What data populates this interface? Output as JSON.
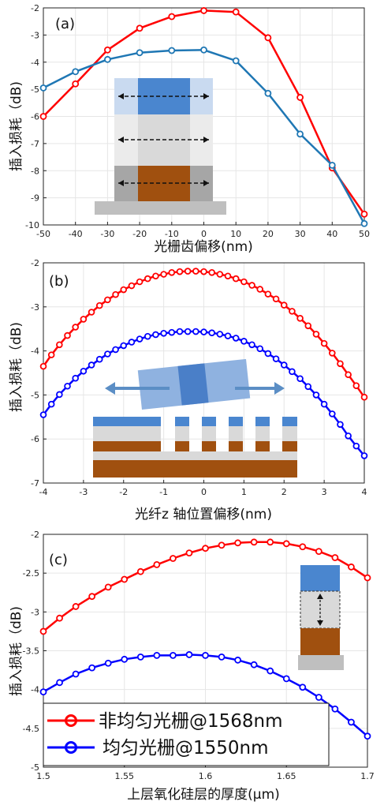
{
  "colors": {
    "red": "#ff0000",
    "blue": "#0070c0",
    "lightblue": "#5b9bd5",
    "paleblue": "#bdd7ee",
    "brown": "#a0500f",
    "gray": "#bfbfbf",
    "lightgray": "#d9d9d9",
    "darkgray": "#a6a6a6",
    "arrowblue": "#5b8ec5"
  },
  "legend": {
    "entries": [
      "非均匀光栅@1568nm",
      "均匀光栅@1550nm"
    ],
    "colors": [
      "#ff0000",
      "#0000ff"
    ]
  },
  "chart_data": [
    {
      "type": "line",
      "panel_label": "(a)",
      "xlabel": "光栅齿偏移(nm)",
      "ylabel": "插入损耗（dB)",
      "xlim": [
        -50,
        50
      ],
      "ylim": [
        -10,
        -2
      ],
      "xticks": [
        -50,
        -40,
        -30,
        -20,
        -10,
        0,
        10,
        20,
        30,
        40,
        50
      ],
      "yticks": [
        -10,
        -9,
        -8,
        -7,
        -6,
        -5,
        -4,
        -3,
        -2
      ],
      "xticklabels": [
        "-50",
        "-40",
        "-30",
        "-20",
        "-10",
        "0",
        "10",
        "20",
        "30",
        "40",
        "50"
      ],
      "yticklabels": [
        "-10",
        "-9",
        "-8",
        "-7",
        "-6",
        "-5",
        "-4",
        "-3",
        "-2"
      ],
      "grid": true,
      "series": [
        {
          "color": "#ff0000",
          "x": [
            -50,
            -40,
            -30,
            -20,
            -10,
            0,
            10,
            20,
            30,
            40,
            50
          ],
          "values": [
            -6.0,
            -4.8,
            -3.55,
            -2.75,
            -2.32,
            -2.1,
            -2.15,
            -3.1,
            -5.3,
            -7.9,
            -9.6
          ]
        },
        {
          "color": "#1f77b4",
          "x": [
            -50,
            -40,
            -30,
            -20,
            -10,
            0,
            10,
            20,
            30,
            40,
            50
          ],
          "values": [
            -4.95,
            -4.35,
            -3.9,
            -3.65,
            -3.57,
            -3.55,
            -3.95,
            -5.15,
            -6.65,
            -7.8,
            -9.95
          ]
        }
      ]
    },
    {
      "type": "line",
      "panel_label": "(b)",
      "xlabel": "光纤z 轴位置偏移(nm)",
      "ylabel": "插入损耗（dB)",
      "xlim": [
        -4,
        4
      ],
      "ylim": [
        -7,
        -2
      ],
      "xticks": [
        -4,
        -3,
        -2,
        -1,
        0,
        1,
        2,
        3,
        4
      ],
      "yticks": [
        -7,
        -6,
        -5,
        -4,
        -3,
        -2
      ],
      "xticklabels": [
        "-4",
        "-3",
        "-2",
        "-1",
        "0",
        "1",
        "2",
        "3",
        "4"
      ],
      "yticklabels": [
        "-7",
        "-6",
        "-5",
        "-4",
        "-3",
        "-2"
      ],
      "grid": true,
      "series": [
        {
          "color": "#ff0000",
          "x": [
            -4.0,
            -3.8,
            -3.6,
            -3.4,
            -3.2,
            -3.0,
            -2.8,
            -2.6,
            -2.4,
            -2.2,
            -2.0,
            -1.8,
            -1.6,
            -1.4,
            -1.2,
            -1.0,
            -0.8,
            -0.6,
            -0.4,
            -0.2,
            0.0,
            0.2,
            0.4,
            0.6,
            0.8,
            1.0,
            1.2,
            1.4,
            1.6,
            1.8,
            2.0,
            2.2,
            2.4,
            2.6,
            2.8,
            3.0,
            3.2,
            3.4,
            3.6,
            3.8,
            4.0
          ],
          "values": [
            -4.35,
            -4.09,
            -3.86,
            -3.65,
            -3.46,
            -3.28,
            -3.12,
            -2.97,
            -2.84,
            -2.72,
            -2.61,
            -2.52,
            -2.43,
            -2.36,
            -2.3,
            -2.26,
            -2.22,
            -2.2,
            -2.19,
            -2.19,
            -2.2,
            -2.22,
            -2.26,
            -2.3,
            -2.36,
            -2.43,
            -2.51,
            -2.6,
            -2.71,
            -2.82,
            -2.96,
            -3.1,
            -3.26,
            -3.43,
            -3.62,
            -3.83,
            -4.05,
            -4.29,
            -4.54,
            -4.79,
            -5.05
          ]
        },
        {
          "color": "#0000ff",
          "x": [
            -4.0,
            -3.8,
            -3.6,
            -3.4,
            -3.2,
            -3.0,
            -2.8,
            -2.6,
            -2.4,
            -2.2,
            -2.0,
            -1.8,
            -1.6,
            -1.4,
            -1.2,
            -1.0,
            -0.8,
            -0.6,
            -0.4,
            -0.2,
            0.0,
            0.2,
            0.4,
            0.6,
            0.8,
            1.0,
            1.2,
            1.4,
            1.6,
            1.8,
            2.0,
            2.2,
            2.4,
            2.6,
            2.8,
            3.0,
            3.2,
            3.4,
            3.6,
            3.8,
            4.0
          ],
          "values": [
            -5.45,
            -5.21,
            -4.99,
            -4.8,
            -4.62,
            -4.46,
            -4.32,
            -4.19,
            -4.07,
            -3.97,
            -3.88,
            -3.8,
            -3.73,
            -3.67,
            -3.63,
            -3.6,
            -3.58,
            -3.56,
            -3.56,
            -3.56,
            -3.57,
            -3.59,
            -3.62,
            -3.66,
            -3.71,
            -3.78,
            -3.86,
            -3.95,
            -4.06,
            -4.18,
            -4.32,
            -4.47,
            -4.63,
            -4.81,
            -5.0,
            -5.21,
            -5.43,
            -5.67,
            -5.93,
            -6.16,
            -6.38
          ]
        }
      ]
    },
    {
      "type": "line",
      "panel_label": "(c)",
      "xlabel": "上层氧化硅层的厚度(μm)",
      "ylabel": "插入损耗（dB)",
      "xlim": [
        1.5,
        1.7
      ],
      "ylim": [
        -5,
        -2
      ],
      "xticks": [
        1.5,
        1.55,
        1.6,
        1.65,
        1.7
      ],
      "yticks": [
        -5,
        -4.5,
        -4,
        -3.5,
        -3,
        -2.5,
        -2
      ],
      "xticklabels": [
        "1.5",
        "1.55",
        "1.6",
        "1.65",
        "1.7"
      ],
      "yticklabels": [
        "-5",
        "-4.5",
        "-4",
        "-3.5",
        "-3",
        "-2.5",
        "-2"
      ],
      "grid": true,
      "series": [
        {
          "color": "#ff0000",
          "x": [
            1.5,
            1.51,
            1.52,
            1.53,
            1.54,
            1.55,
            1.56,
            1.57,
            1.58,
            1.59,
            1.6,
            1.61,
            1.62,
            1.63,
            1.64,
            1.65,
            1.66,
            1.67,
            1.68,
            1.69,
            1.7
          ],
          "values": [
            -3.25,
            -3.08,
            -2.93,
            -2.8,
            -2.68,
            -2.58,
            -2.48,
            -2.39,
            -2.31,
            -2.24,
            -2.18,
            -2.14,
            -2.11,
            -2.1,
            -2.1,
            -2.12,
            -2.16,
            -2.22,
            -2.3,
            -2.42,
            -2.56
          ]
        },
        {
          "color": "#0000ff",
          "x": [
            1.5,
            1.51,
            1.52,
            1.53,
            1.54,
            1.55,
            1.56,
            1.57,
            1.58,
            1.59,
            1.6,
            1.61,
            1.62,
            1.63,
            1.64,
            1.65,
            1.66,
            1.67,
            1.68,
            1.69,
            1.7
          ],
          "values": [
            -4.03,
            -3.91,
            -3.8,
            -3.72,
            -3.66,
            -3.61,
            -3.58,
            -3.56,
            -3.56,
            -3.55,
            -3.56,
            -3.58,
            -3.62,
            -3.68,
            -3.76,
            -3.86,
            -3.97,
            -4.1,
            -4.25,
            -4.42,
            -4.6
          ]
        }
      ]
    }
  ]
}
